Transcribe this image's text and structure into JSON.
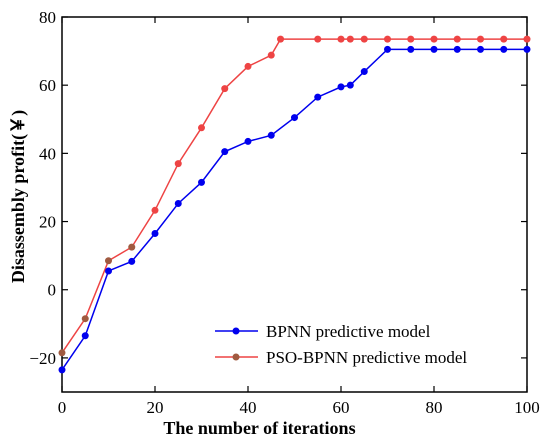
{
  "chart_data": {
    "type": "line",
    "xlabel": "The number of iterations",
    "ylabel": "Disassembly profit(￥)",
    "xlim": [
      0,
      100
    ],
    "ylim": [
      -30,
      80
    ],
    "xticks": [
      0,
      20,
      40,
      60,
      80,
      100
    ],
    "yticks": [
      -20,
      0,
      20,
      40,
      60,
      80
    ],
    "legend_position": "bottom-right",
    "grid": false,
    "series": [
      {
        "name": "BPNN predictive model",
        "color": "#0000ee",
        "marker_color": "#0000ee",
        "x": [
          0,
          5,
          10,
          15,
          20,
          25,
          30,
          35,
          40,
          45,
          50,
          55,
          60,
          62,
          65,
          70,
          75,
          80,
          85,
          90,
          95,
          100
        ],
        "y": [
          -23.5,
          -13.5,
          5.5,
          8.3,
          16.5,
          25.3,
          31.5,
          40.5,
          43.5,
          45.3,
          50.5,
          56.5,
          59.5,
          60,
          64,
          70.5,
          70.5,
          70.5,
          70.5,
          70.5,
          70.5,
          70.5
        ]
      },
      {
        "name": "PSO-BPNN predictive model",
        "color": "#ee4444",
        "marker_color": "#a05a40",
        "x": [
          0,
          5,
          10,
          15,
          20,
          25,
          30,
          35,
          40,
          45,
          47,
          55,
          60,
          62,
          65,
          70,
          75,
          80,
          85,
          90,
          95,
          100
        ],
        "y": [
          -18.5,
          -8.5,
          8.5,
          12.5,
          23.3,
          37,
          47.5,
          59,
          65.5,
          68.8,
          73.5,
          73.5,
          73.5,
          73.5,
          73.5,
          73.5,
          73.5,
          73.5,
          73.5,
          73.5,
          73.5,
          73.5
        ]
      }
    ]
  }
}
